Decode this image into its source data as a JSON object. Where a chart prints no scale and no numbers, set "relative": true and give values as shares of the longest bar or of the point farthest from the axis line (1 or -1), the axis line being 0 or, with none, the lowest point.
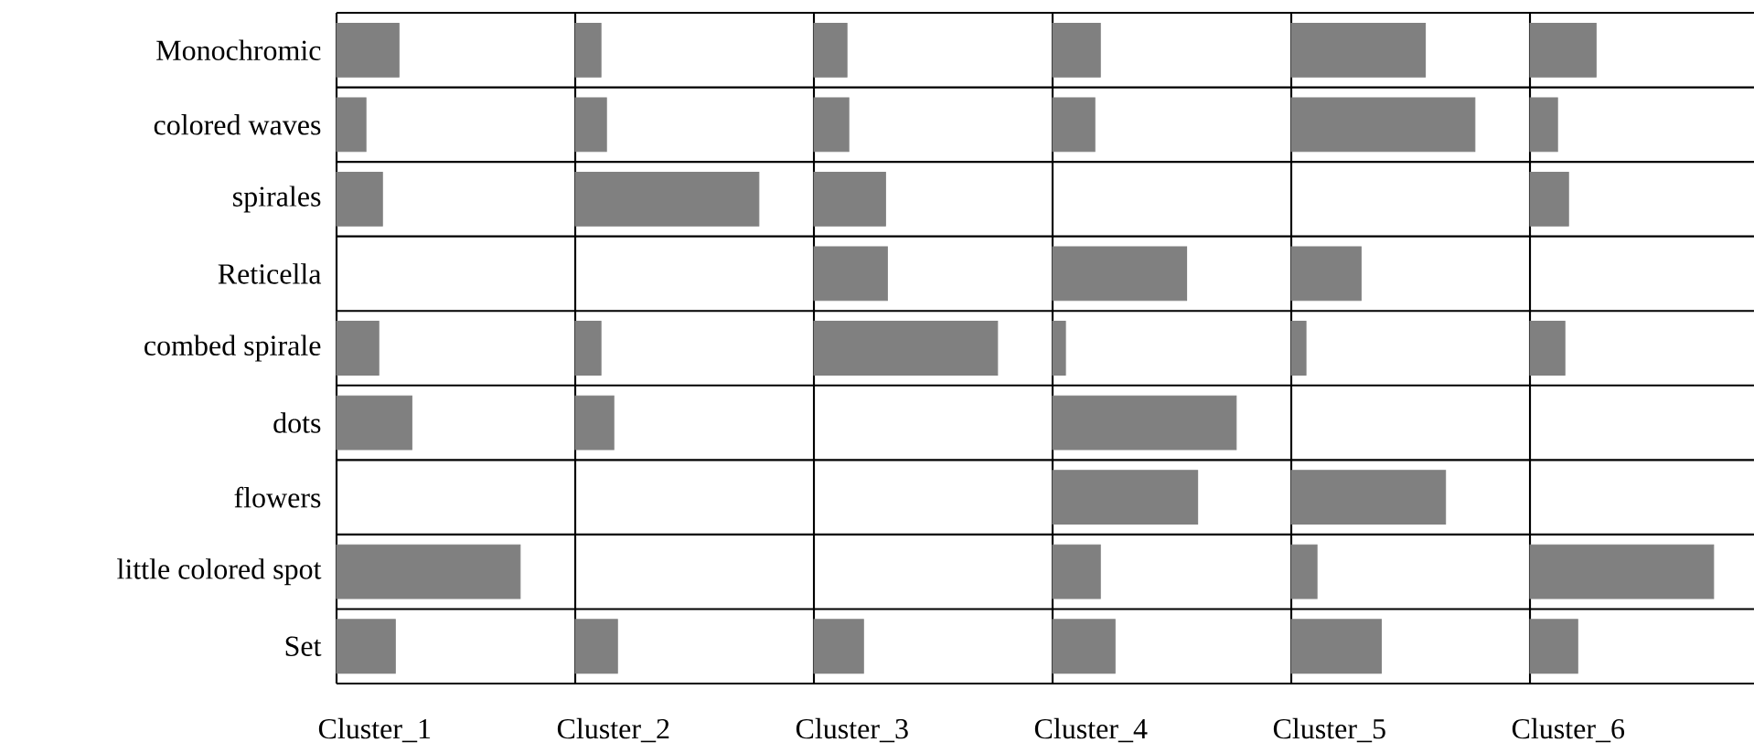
{
  "chart_data": [
    {
      "type": "bar",
      "orientation": "horizontal",
      "relative": true,
      "tick_labels": "y",
      "grid": "y",
      "xlabel": "Cluster_1",
      "color": "#808080",
      "categories": [
        "Monochromic",
        "colored waves",
        "spirales",
        "Reticella",
        "combed spirale",
        "dots",
        "flowers",
        "little colored spot",
        "Set"
      ],
      "values": [
        0.34,
        0.16,
        0.25,
        0,
        0.23,
        0.41,
        0,
        1,
        0.32
      ]
    },
    {
      "type": "bar",
      "orientation": "horizontal",
      "relative": true,
      "tick_labels": false,
      "grid": "y",
      "xlabel": "Cluster_2",
      "color": "#808080",
      "categories": [
        null,
        null,
        null,
        null,
        null,
        null,
        null,
        null,
        null
      ],
      "values": [
        0.14,
        0.17,
        1,
        0,
        0.14,
        0.21,
        0,
        0,
        0.23
      ]
    },
    {
      "type": "bar",
      "orientation": "horizontal",
      "relative": true,
      "tick_labels": false,
      "grid": "y",
      "xlabel": "Cluster_3",
      "color": "#808080",
      "categories": [
        null,
        null,
        null,
        null,
        null,
        null,
        null,
        null,
        null
      ],
      "values": [
        0.18,
        0.19,
        0.39,
        0.4,
        1,
        0,
        0,
        0,
        0.27
      ]
    },
    {
      "type": "bar",
      "orientation": "horizontal",
      "relative": true,
      "tick_labels": false,
      "grid": "y",
      "xlabel": "Cluster_4",
      "color": "#808080",
      "categories": [
        null,
        null,
        null,
        null,
        null,
        null,
        null,
        null,
        null
      ],
      "values": [
        0.26,
        0.23,
        0,
        0.73,
        0.07,
        1,
        0.79,
        0.26,
        0.34
      ]
    },
    {
      "type": "bar",
      "orientation": "horizontal",
      "relative": true,
      "tick_labels": false,
      "grid": "y",
      "xlabel": "Cluster_5",
      "color": "#808080",
      "categories": [
        null,
        null,
        null,
        null,
        null,
        null,
        null,
        null,
        null
      ],
      "values": [
        0.73,
        1,
        0,
        0.38,
        0.08,
        0,
        0.84,
        0.14,
        0.49
      ]
    },
    {
      "type": "bar",
      "orientation": "horizontal",
      "relative": true,
      "tick_labels": false,
      "grid": "y",
      "xlabel": "Cluster_6",
      "color": "#808080",
      "categories": [
        null,
        null,
        null,
        null,
        null,
        null,
        null,
        null,
        null
      ],
      "values": [
        0.36,
        0.15,
        0.21,
        0,
        0.19,
        0,
        0,
        1,
        0.26
      ]
    }
  ]
}
